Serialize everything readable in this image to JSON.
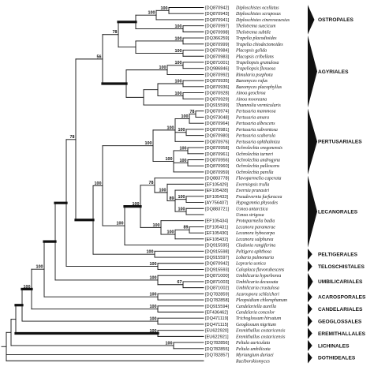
{
  "taxa": [
    {
      "accession": "[DQ870942]",
      "species": "Diploschistes ocellatus"
    },
    {
      "accession": "[DQ870943]",
      "species": "Diploschistes scruposus"
    },
    {
      "accession": "[DQ870941]",
      "species": "Diploschistes cinereocaesius"
    },
    {
      "accession": "[DQ870997]",
      "species": "Thelotrema suecicum"
    },
    {
      "accession": "[DQ870998]",
      "species": "Thelotrema subtile"
    },
    {
      "accession": "[DQ366259]",
      "species": "Trapelia placodioides"
    },
    {
      "accession": "[DQ870999]",
      "species": "Trapelia chiodectonoides"
    },
    {
      "accession": "[DQ870984]",
      "species": "Placopsis gelida"
    },
    {
      "accession": "[DQ870983]",
      "species": "Placopsis cribellans"
    },
    {
      "accession": "[DQ871001]",
      "species": "Trapeliopsis granulosa"
    },
    {
      "accession": "[DQ986846]",
      "species": "Trapeliopsis flexuosa"
    },
    {
      "accession": "[DQ870992]",
      "species": "Rimularia psephota"
    },
    {
      "accession": "[DQ870935]",
      "species": "Baeomyces rufus"
    },
    {
      "accession": "[DQ870936]",
      "species": "Baeomyces placophyllus"
    },
    {
      "accession": "[DQ870928]",
      "species": "Ainoa geochroa"
    },
    {
      "accession": "[DQ870929]",
      "species": "Ainoa mooreana"
    },
    {
      "accession": "[DQ915599]",
      "species": "Thamnolia vermicularis"
    },
    {
      "accession": "[DQ870974]",
      "species": "Pertusaria mammosa"
    },
    {
      "accession": "[DQ973048]",
      "species": "Pertusaria amara"
    },
    {
      "accession": "[DQ870964]",
      "species": "Pertusaria albescens"
    },
    {
      "accession": "[DQ870981]",
      "species": "Pertusaria subventosa"
    },
    {
      "accession": "[DQ870980]",
      "species": "Pertusaria scaberula"
    },
    {
      "accession": "[DQ870976]",
      "species": "Pertusaria ophthalmiza"
    },
    {
      "accession": "[DQ870958]",
      "species": "Ochrolechia oregonensis"
    },
    {
      "accession": "[DQ870961]",
      "species": "Ochrolechia turneri"
    },
    {
      "accession": "[DQ870956]",
      "species": "Ochrolechia androgyna"
    },
    {
      "accession": "[DQ870960]",
      "species": "Ochrolechia pallescens"
    },
    {
      "accession": "[DQ870959]",
      "species": "Ochrolechia parella"
    },
    {
      "accession": "[DQ883778]",
      "species": "Flavoparmelia caperata"
    },
    {
      "accession": "[EF105429]",
      "species": "Everniopsis trulla"
    },
    {
      "accession": "[EF105428]",
      "species": "Evernia prunastri"
    },
    {
      "accession": "[EF105433]",
      "species": "Pseudevernia furfuracea"
    },
    {
      "accession": "[AY756407]",
      "species": "Hypogymnia physodes"
    },
    {
      "accession": "[DQ883721]",
      "species": "Usnea antarctica"
    },
    {
      "accession": "",
      "species": "Usnea strigosa"
    },
    {
      "accession": "[EF105434]",
      "species": "Protoparmelia badia"
    },
    {
      "accession": "[EF105431]",
      "species": "Lecanora paramerae"
    },
    {
      "accession": "[EF105430]",
      "species": "Lecanora hybocarpa"
    },
    {
      "accession": "[EF105432]",
      "species": "Lecanora sulphurea"
    },
    {
      "accession": "[DQ915595]",
      "species": "Cladonia rangiferina"
    },
    {
      "accession": "[DQ915598]",
      "species": "Peltigera aphthosa"
    },
    {
      "accession": "[DQ915597]",
      "species": "Lobaria pulmonaria"
    },
    {
      "accession": "[DQ870942]",
      "species": "Lepraria usnica"
    },
    {
      "accession": "[DQ915593]",
      "species": "Caloplaca flavorubescens"
    },
    {
      "accession": "[DQ871000]",
      "species": "Umbilicaria hyperborea"
    },
    {
      "accession": "[DQ871003]",
      "species": "Umbilicaria decussata"
    },
    {
      "accession": "[DQ871002]",
      "species": "Umbilicaria crustulosa"
    },
    {
      "accession": "[DQ782859]",
      "species": "Acarospora schleicheri"
    },
    {
      "accession": "[DQ782858]",
      "species": "Pleopsidium chlorophanum"
    },
    {
      "accession": "[DQ915594]",
      "species": "Candelariella aurella"
    },
    {
      "accession": "[EF436462]",
      "species": "Candelaria concolor"
    },
    {
      "accession": "[DQ471119]",
      "species": "Trichoglossum hirsutum"
    },
    {
      "accession": "[DQ471115]",
      "species": "Geoglossum nigritum"
    },
    {
      "accession": "[EU622920]",
      "species": "Eremithallus costaricensis"
    },
    {
      "accession": "[EU622921]",
      "species": "Eremithallus costaricensis"
    },
    {
      "accession": "[DQ782856]",
      "species": "Peltula auriculata"
    },
    {
      "accession": "[DQ782855]",
      "species": "Peltula umbilicata"
    },
    {
      "accession": "[DQ782857]",
      "species": "Myriangium duriaei"
    },
    {
      "accession": "",
      "species": "Raciborskiomyces"
    }
  ],
  "orders": [
    {
      "name": "OSTROPALES"
    },
    {
      "name": "AGYRIALES"
    },
    {
      "name": "PERTUSARIALES"
    },
    {
      "name": "LECANORALES"
    },
    {
      "name": "PELTIGERALES"
    },
    {
      "name": "TELOSCHISTALES"
    },
    {
      "name": "UMBILICARIALES"
    },
    {
      "name": "ACAROSPORALES"
    },
    {
      "name": "CANDELARIALES"
    },
    {
      "name": "GEOGLOSSALES"
    },
    {
      "name": "EREMITHALLALES"
    },
    {
      "name": "LICHINALES"
    },
    {
      "name": "DOTHIDEALES"
    }
  ],
  "bootstrap": [
    "100",
    "100",
    "100",
    "100",
    "100",
    "78",
    "100",
    "100",
    "100",
    "100",
    "56",
    "78",
    "100",
    "100",
    "100",
    "100",
    "100",
    "100",
    "100",
    "100",
    "100",
    "89",
    "100",
    "78",
    "89",
    "100",
    "100",
    "100",
    "100",
    "100",
    "100",
    "78",
    "100",
    "67",
    "100",
    "100",
    "100",
    "100",
    "100",
    "100",
    "100",
    "100"
  ]
}
